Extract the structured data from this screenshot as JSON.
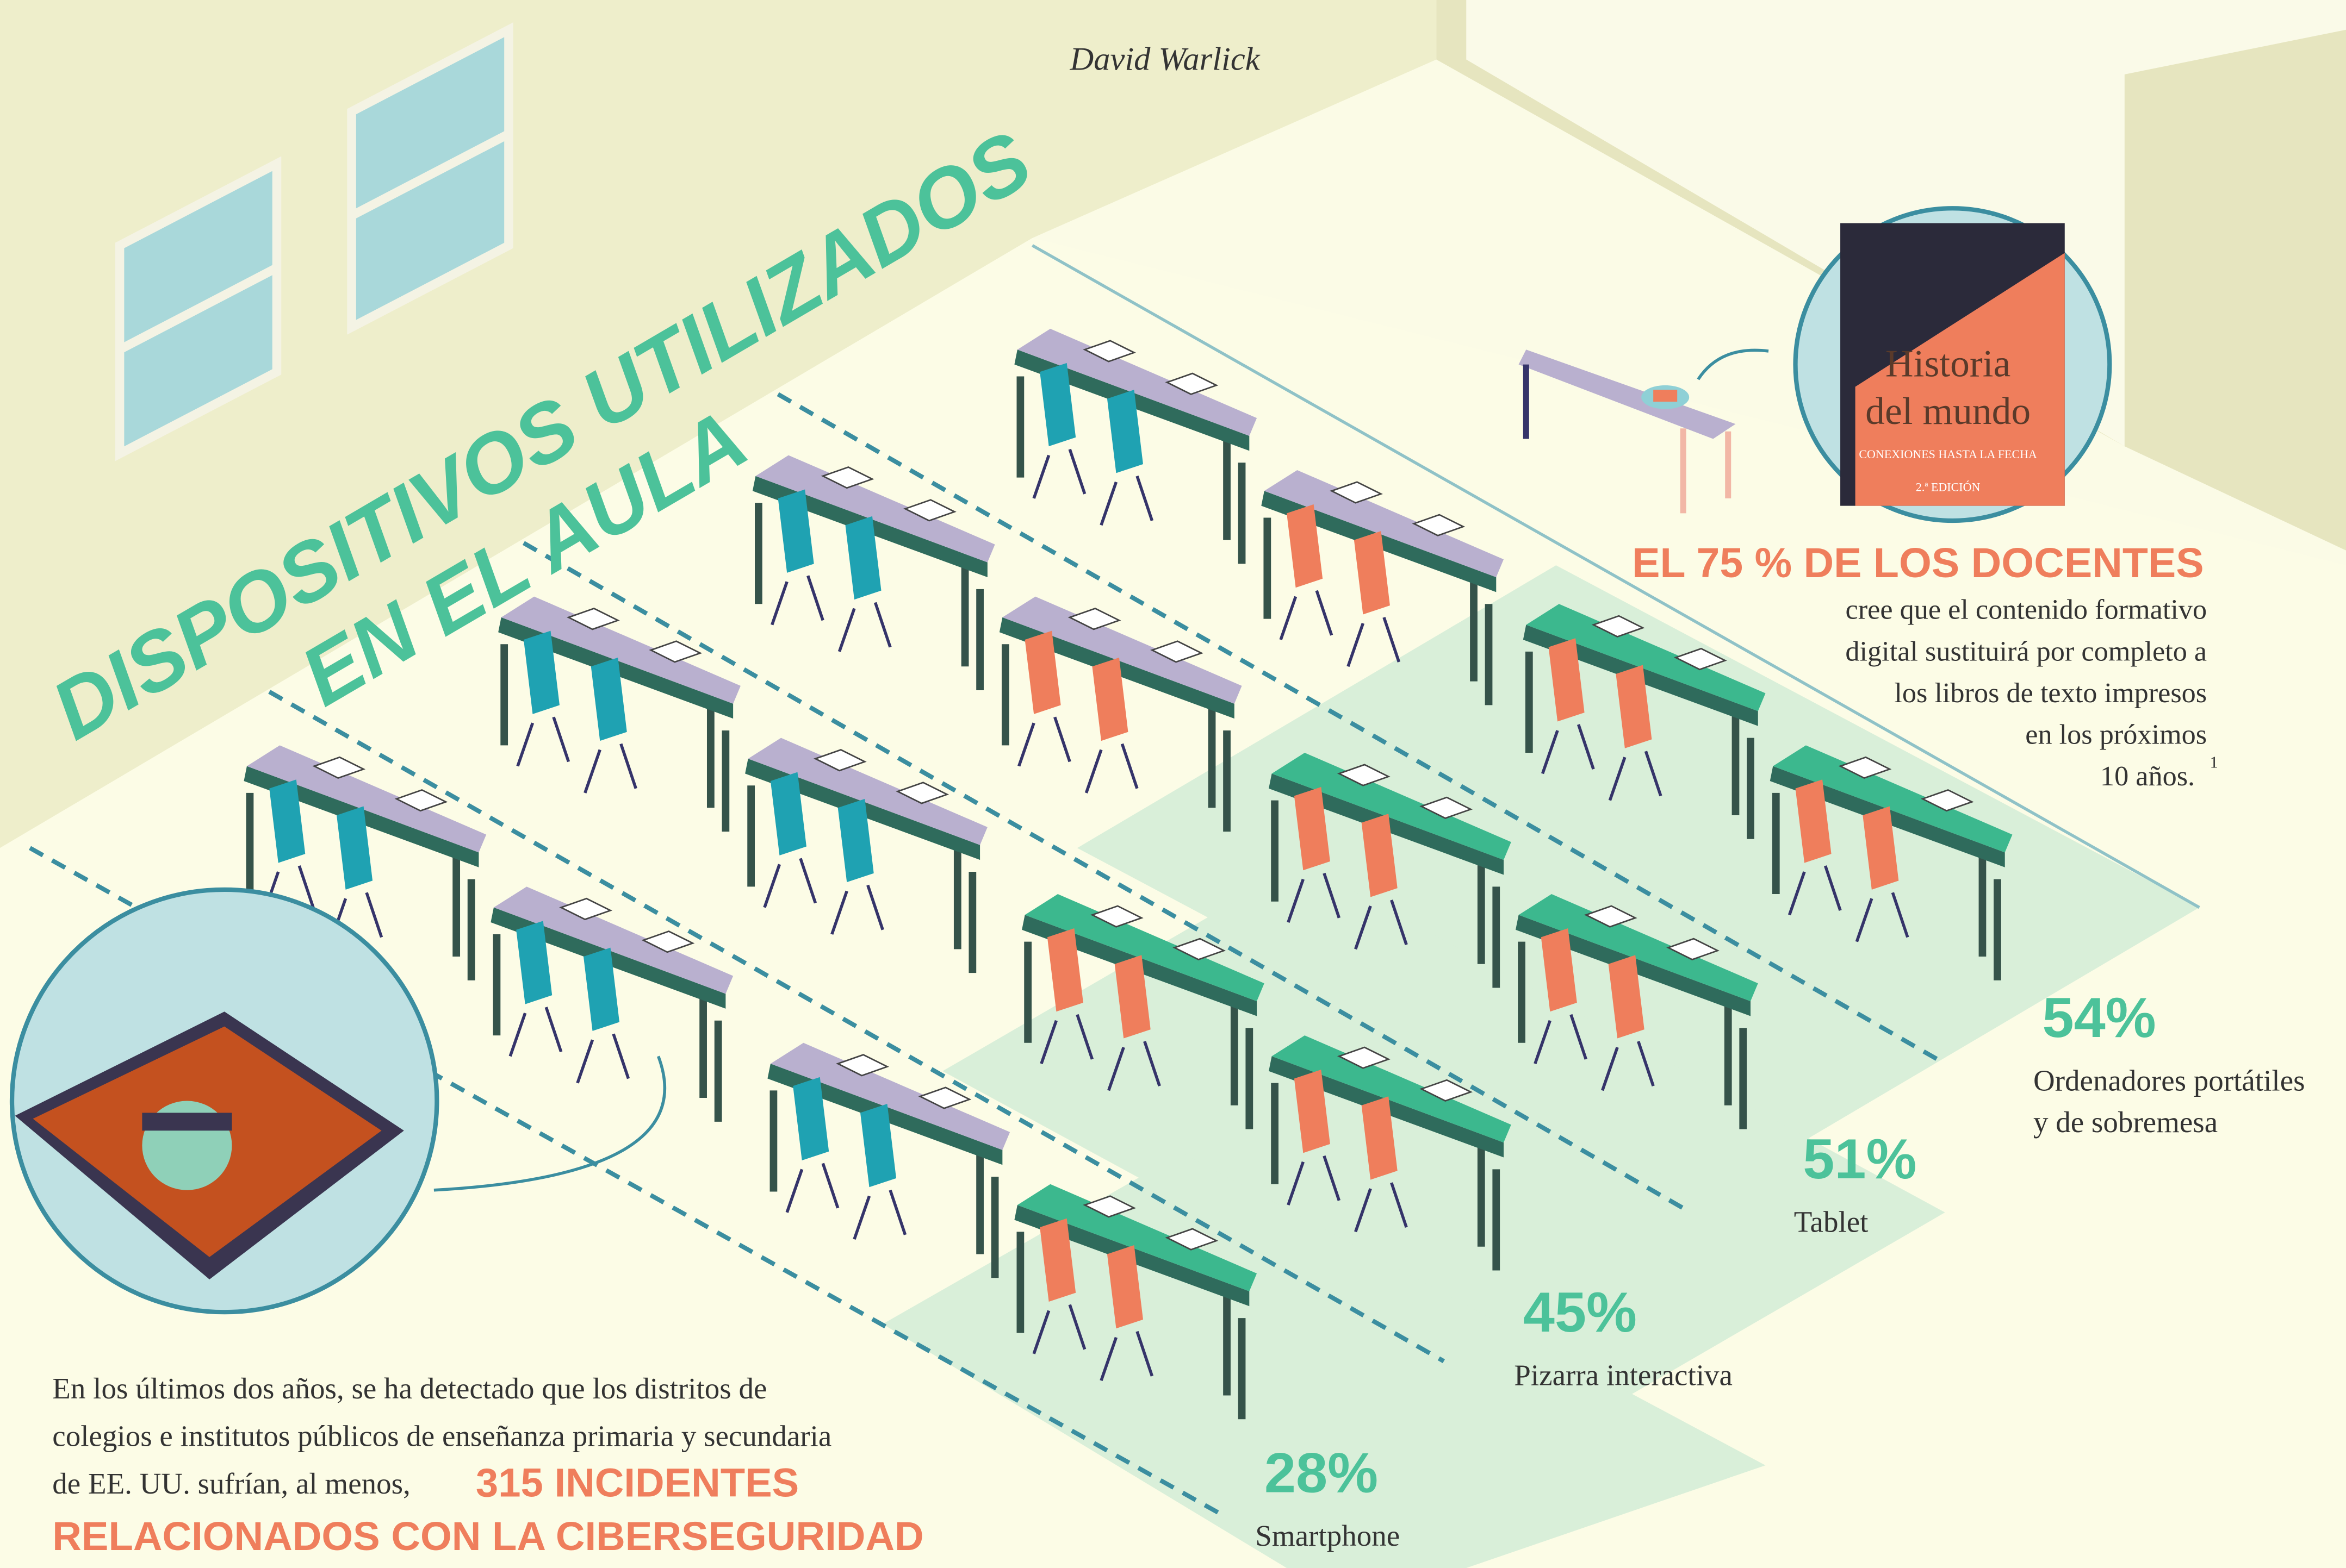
{
  "header": {
    "author": "David Warlick"
  },
  "title": {
    "line1": "DISPOSITIVOS UTILIZADOS",
    "line2": "EN EL AULA"
  },
  "book": {
    "title1": "Historia",
    "title2": "del mundo",
    "subtitle": "CONEXIONES HASTA LA FECHA",
    "edition": "2.ª EDICIÓN"
  },
  "teachers": {
    "headline": "EL 75 % DE LOS DOCENTES",
    "lines": [
      "cree que el contenido formativo",
      "digital sustituirá por completo a",
      "los libros de texto impresos",
      "en los próximos",
      "10 años."
    ],
    "footnote": "1"
  },
  "stats": [
    {
      "value": "54%",
      "label": [
        "Ordenadores portátiles",
        "y de sobremesa"
      ]
    },
    {
      "value": "51%",
      "label": [
        "Tablet"
      ]
    },
    {
      "value": "45%",
      "label": [
        "Pizarra interactiva"
      ]
    },
    {
      "value": "28%",
      "label": [
        "Smartphone"
      ]
    }
  ],
  "incidents": {
    "lines": [
      "En los últimos dos años, se ha detectado que los distritos de",
      "colegios e institutos públicos de enseñanza primaria y secundaria",
      "de EE. UU. sufrían, al menos,"
    ],
    "highlight": [
      "315 INCIDENTES",
      "RELACIONADOS CON LA CIBERSEGURIDAD"
    ]
  }
}
